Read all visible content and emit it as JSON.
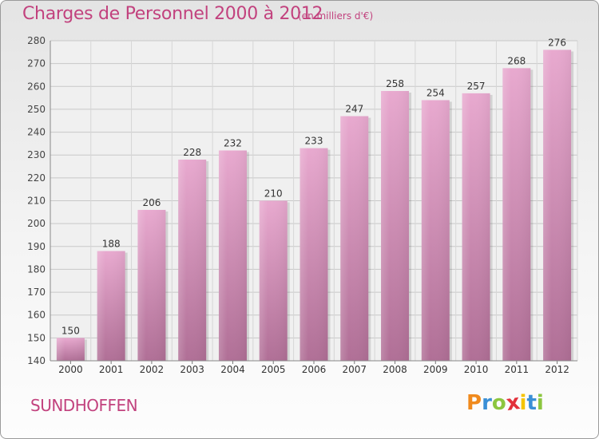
{
  "chart_data": {
    "type": "bar",
    "title": "Charges de Personnel 2000 à 2012",
    "subtitle": "(en milliers d'€)",
    "categories": [
      "2000",
      "2001",
      "2002",
      "2003",
      "2004",
      "2005",
      "2006",
      "2007",
      "2008",
      "2009",
      "2010",
      "2011",
      "2012"
    ],
    "values": [
      150,
      188,
      206,
      228,
      232,
      210,
      233,
      247,
      258,
      254,
      257,
      268,
      276
    ],
    "ylim": [
      140,
      280
    ],
    "yticks": [
      140,
      150,
      160,
      170,
      180,
      190,
      200,
      210,
      220,
      230,
      240,
      250,
      260,
      270,
      280
    ],
    "grid": true,
    "legend": "none",
    "colors": {
      "bar_top": "#e8a9cf",
      "bar_bottom": "#b06f96",
      "accent": "#c2427e"
    }
  },
  "commune": "SUNDHOFFEN",
  "logo": {
    "letters": [
      "P",
      "r",
      "o",
      "x",
      "i",
      "t",
      "i"
    ],
    "colors": [
      "#f08a1d",
      "#3a8fd6",
      "#8cc63f",
      "#e2313b",
      "#f5c400",
      "#3a8fd6",
      "#8cc63f"
    ]
  }
}
